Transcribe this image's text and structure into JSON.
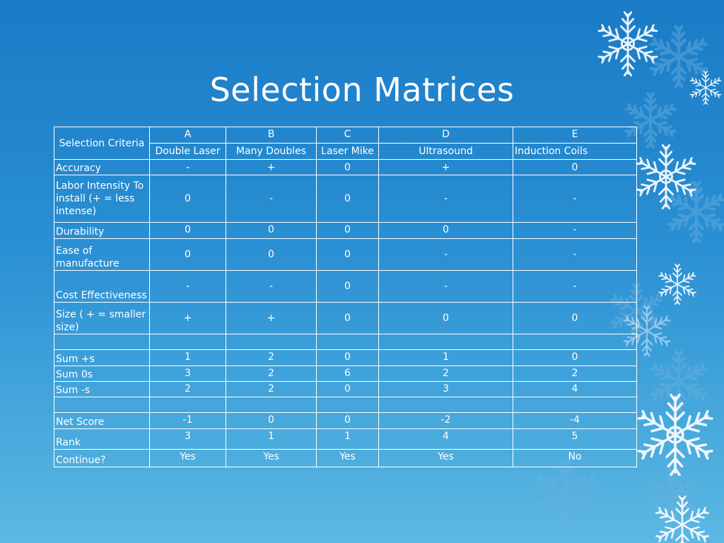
{
  "slide": {
    "title": "Selection Matrices"
  },
  "table": {
    "criteria_header": "Selection Criteria",
    "concepts": [
      {
        "letter": "A",
        "name": "Double Laser"
      },
      {
        "letter": "B",
        "name": "Many Doubles"
      },
      {
        "letter": "C",
        "name": "Laser Mike"
      },
      {
        "letter": "D",
        "name": "Ultrasound"
      },
      {
        "letter": "E",
        "name": "Induction Coils"
      }
    ],
    "rows": [
      {
        "criterion": "Accuracy",
        "values": [
          "-",
          "+",
          "0",
          "+",
          "0"
        ]
      },
      {
        "criterion": "Labor Intensity To install   (+ = less intense)",
        "values": [
          "0",
          "-",
          "0",
          "-",
          "-"
        ]
      },
      {
        "criterion": "Durability",
        "values": [
          "0",
          "0",
          "0",
          "0",
          "-"
        ]
      },
      {
        "criterion": "Ease of manufacture",
        "values": [
          "0",
          "0",
          "0",
          "-",
          "-"
        ]
      },
      {
        "criterion": "Cost Effectiveness",
        "values": [
          "-",
          "-",
          "0",
          "-",
          "-"
        ]
      },
      {
        "criterion": "Size  ( + = smaller size)",
        "values": [
          "+",
          "+",
          "0",
          "0",
          "0"
        ]
      },
      {
        "criterion": "",
        "values": [
          "",
          "",
          "",
          "",
          ""
        ]
      },
      {
        "criterion": "Sum +s",
        "values": [
          "1",
          "2",
          "0",
          "1",
          "0"
        ]
      },
      {
        "criterion": "Sum 0s",
        "values": [
          "3",
          "2",
          "6",
          "2",
          "2"
        ]
      },
      {
        "criterion": "Sum -s",
        "values": [
          "2",
          "2",
          "0",
          "3",
          "4"
        ]
      },
      {
        "criterion": "",
        "values": [
          "",
          "",
          "",
          "",
          ""
        ]
      },
      {
        "criterion": "Net Score",
        "values": [
          "-1",
          "0",
          "0",
          "-2",
          "-4"
        ]
      },
      {
        "criterion": "Rank",
        "values": [
          "3",
          "1",
          "1",
          "4",
          "5"
        ]
      },
      {
        "criterion": "Continue?",
        "values": [
          "Yes",
          "Yes",
          "Yes",
          "Yes",
          "No"
        ]
      }
    ]
  },
  "decoration": {
    "icon": "snowflake-icon",
    "background": "#2a8fd3",
    "text_color": "#ffffff"
  }
}
